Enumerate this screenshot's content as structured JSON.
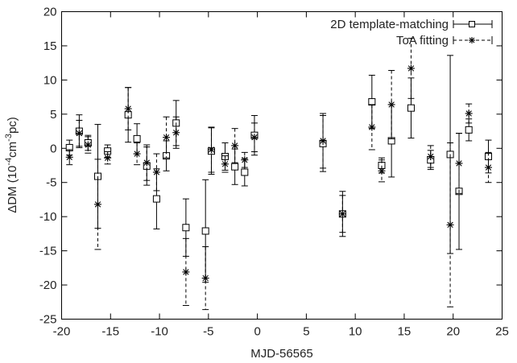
{
  "chart_data": {
    "type": "scatter",
    "xlabel": "MJD-56565",
    "ylabel": "ΔDM (10",
    "ylabel_exp1": "-4",
    "ylabel_mid": "cm",
    "ylabel_exp2": "-3",
    "ylabel_end": "pc)",
    "xlim": [
      -20,
      25
    ],
    "ylim": [
      -25,
      20
    ],
    "xticks": [
      -20,
      -15,
      -10,
      -5,
      0,
      5,
      10,
      15,
      20,
      25
    ],
    "yticks": [
      -25,
      -20,
      -15,
      -10,
      -5,
      0,
      5,
      10,
      15,
      20
    ],
    "grid": false,
    "legend_position": "top-right",
    "series": [
      {
        "name": "2D template-matching",
        "marker": "square",
        "line_style": "solid",
        "points": [
          {
            "x": -19.2,
            "y": 0.1,
            "err": 1.1
          },
          {
            "x": -18.2,
            "y": 2.5,
            "err": 2.4
          },
          {
            "x": -17.3,
            "y": 0.8,
            "err": 1.1
          },
          {
            "x": -16.3,
            "y": -4.1,
            "err": 7.6
          },
          {
            "x": -15.3,
            "y": -0.4,
            "err": 0.9
          },
          {
            "x": -13.2,
            "y": 4.9,
            "err": 4.0
          },
          {
            "x": -12.3,
            "y": 1.4,
            "err": 2.2
          },
          {
            "x": -11.3,
            "y": -2.6,
            "err": 2.8
          },
          {
            "x": -10.3,
            "y": -7.4,
            "err": 4.4
          },
          {
            "x": -9.3,
            "y": -1.1,
            "err": 2.2
          },
          {
            "x": -8.3,
            "y": 3.7,
            "err": 3.3
          },
          {
            "x": -7.3,
            "y": -11.6,
            "err": 4.2
          },
          {
            "x": -5.3,
            "y": -12.1,
            "err": 7.5
          },
          {
            "x": -4.7,
            "y": -0.4,
            "err": 3.4
          },
          {
            "x": -3.3,
            "y": -1.2,
            "err": 2.0
          },
          {
            "x": -2.3,
            "y": -2.7,
            "err": 2.6
          },
          {
            "x": -1.3,
            "y": -3.5,
            "err": 2.0
          },
          {
            "x": -0.3,
            "y": 1.9,
            "err": 2.9
          },
          {
            "x": 6.7,
            "y": 0.7,
            "err": 4.1
          },
          {
            "x": 8.7,
            "y": -9.6,
            "err": 3.3
          },
          {
            "x": 11.7,
            "y": 6.8,
            "err": 3.9
          },
          {
            "x": 12.7,
            "y": -2.5,
            "err": 1.1
          },
          {
            "x": 13.7,
            "y": 1.1,
            "err": 5.3
          },
          {
            "x": 15.7,
            "y": 5.9,
            "err": 4.4
          },
          {
            "x": 17.7,
            "y": -1.7,
            "err": 1.4
          },
          {
            "x": 19.7,
            "y": -0.9,
            "err": 14.5
          },
          {
            "x": 20.6,
            "y": -6.3,
            "err": 8.5
          },
          {
            "x": 21.6,
            "y": 2.7,
            "err": 1.6
          },
          {
            "x": 23.6,
            "y": -1.2,
            "err": 2.4
          }
        ]
      },
      {
        "name": "ToA fitting",
        "marker": "star",
        "line_style": "dashed",
        "points": [
          {
            "x": -19.2,
            "y": -1.3,
            "err": 1.1
          },
          {
            "x": -18.2,
            "y": 2.2,
            "err": 1.9
          },
          {
            "x": -17.3,
            "y": 0.5,
            "err": 1.2
          },
          {
            "x": -16.3,
            "y": -8.2,
            "err": 6.6
          },
          {
            "x": -15.3,
            "y": -1.4,
            "err": 0.9
          },
          {
            "x": -13.2,
            "y": 5.8,
            "err": 3.1
          },
          {
            "x": -12.3,
            "y": -0.8,
            "err": 1.6
          },
          {
            "x": -11.3,
            "y": -2.1,
            "err": 2.6
          },
          {
            "x": -10.3,
            "y": -3.5,
            "err": 2.7
          },
          {
            "x": -9.3,
            "y": 1.6,
            "err": 3.0
          },
          {
            "x": -8.3,
            "y": 2.3,
            "err": 2.3
          },
          {
            "x": -7.3,
            "y": -18.1,
            "err": 4.9
          },
          {
            "x": -5.3,
            "y": -19.0,
            "err": 4.6
          },
          {
            "x": -4.7,
            "y": -0.2,
            "err": 3.3
          },
          {
            "x": -3.3,
            "y": -2.3,
            "err": 1.2
          },
          {
            "x": -2.3,
            "y": 0.4,
            "err": 2.5
          },
          {
            "x": -1.3,
            "y": -1.7,
            "err": 1.1
          },
          {
            "x": -0.3,
            "y": 1.6,
            "err": 2.1
          },
          {
            "x": 6.7,
            "y": 1.1,
            "err": 4.0
          },
          {
            "x": 8.7,
            "y": -9.6,
            "err": 2.7
          },
          {
            "x": 11.7,
            "y": 3.1,
            "err": 3.3
          },
          {
            "x": 12.7,
            "y": -3.3,
            "err": 1.6
          },
          {
            "x": 13.7,
            "y": 6.4,
            "err": 5.0
          },
          {
            "x": 15.7,
            "y": 11.7,
            "err": 4.4
          },
          {
            "x": 17.7,
            "y": -1.2,
            "err": 1.6
          },
          {
            "x": 19.7,
            "y": -11.2,
            "err": 12.0
          },
          {
            "x": 20.6,
            "y": -2.2,
            "err": 4.4
          },
          {
            "x": 21.6,
            "y": 5.1,
            "err": 1.4
          },
          {
            "x": 23.6,
            "y": -2.8,
            "err": 2.2
          }
        ]
      }
    ]
  }
}
